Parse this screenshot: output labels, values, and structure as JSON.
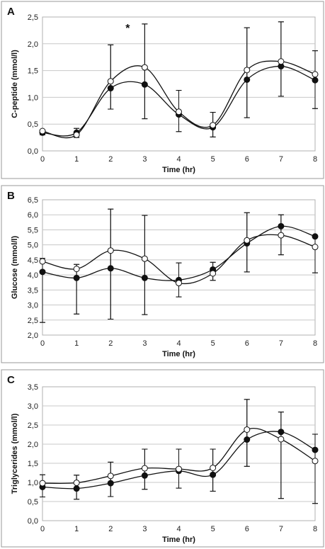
{
  "chart_data": [
    {
      "type": "line",
      "panel_label": "A",
      "xlabel": "Time (hr)",
      "ylabel": "C-peptide (mmol/l)",
      "x": [
        0,
        1,
        2,
        3,
        4,
        5,
        6,
        7,
        8
      ],
      "x_ticks": [
        "0",
        "1",
        "2",
        "3",
        "4",
        "5",
        "6",
        "7",
        "8"
      ],
      "xlim": [
        0,
        8
      ],
      "ylim": [
        0,
        2.5
      ],
      "y_ticks": [
        "0,0",
        "0,5",
        "1,0",
        "1,5",
        "2,0",
        "2,5"
      ],
      "grid": true,
      "smooth": true,
      "annotation": {
        "text": "*",
        "x": 2.5,
        "y": 2.3
      },
      "series": [
        {
          "marker": "filled",
          "values": [
            0.34,
            0.34,
            1.17,
            1.24,
            0.68,
            0.44,
            1.33,
            1.58,
            1.32
          ],
          "err_low": [
            0.3,
            0.25,
            0.78,
            0.6,
            0.36,
            0.26,
            0.62,
            1.02,
            0.79
          ],
          "err_high": [
            0.38,
            0.42,
            1.98,
            2.37,
            1.13,
            0.72,
            2.3,
            2.41,
            1.87
          ]
        },
        {
          "marker": "open",
          "values": [
            0.37,
            0.3,
            1.3,
            1.56,
            0.73,
            0.48,
            1.51,
            1.67,
            1.43
          ],
          "err_low": [
            0.3,
            0.25,
            0.78,
            0.6,
            0.36,
            0.26,
            0.62,
            1.02,
            0.79
          ],
          "err_high": [
            0.38,
            0.42,
            1.98,
            2.37,
            1.13,
            0.72,
            2.3,
            2.41,
            1.87
          ]
        }
      ]
    },
    {
      "type": "line",
      "panel_label": "B",
      "xlabel": "Time (hr)",
      "ylabel": "Glucose (mmol/l)",
      "x": [
        0,
        1,
        2,
        3,
        4,
        5,
        6,
        7,
        8
      ],
      "x_ticks": [
        "0",
        "1",
        "2",
        "3",
        "4",
        "5",
        "6",
        "7",
        "8"
      ],
      "xlim": [
        0,
        8
      ],
      "ylim": [
        2.0,
        6.5
      ],
      "y_ticks": [
        "2,0",
        "2,5",
        "3,0",
        "3,5",
        "4,0",
        "4,5",
        "5,0",
        "5,5",
        "6,0",
        "6,5"
      ],
      "grid": true,
      "smooth": true,
      "series": [
        {
          "marker": "filled",
          "values": [
            4.1,
            3.9,
            4.22,
            3.9,
            3.83,
            4.18,
            5.05,
            5.62,
            5.28
          ],
          "err_low": [
            2.42,
            2.7,
            2.53,
            2.68,
            3.27,
            3.82,
            4.1,
            4.67,
            4.07
          ],
          "err_high": [
            4.55,
            4.35,
            6.19,
            5.98,
            4.4,
            4.42,
            6.07,
            6.0,
            5.3
          ]
        },
        {
          "marker": "open",
          "values": [
            4.45,
            4.2,
            4.81,
            4.54,
            3.73,
            4.05,
            5.15,
            5.32,
            4.93
          ],
          "err_low": [
            2.42,
            2.7,
            2.53,
            2.68,
            3.27,
            3.82,
            4.1,
            4.67,
            4.07
          ],
          "err_high": [
            4.55,
            4.35,
            6.19,
            5.98,
            4.4,
            4.42,
            6.07,
            6.0,
            5.3
          ]
        }
      ]
    },
    {
      "type": "line",
      "panel_label": "C",
      "xlabel": "Time (hr)",
      "ylabel": "Triglycerides (mmol/l)",
      "x": [
        0,
        1,
        2,
        3,
        4,
        5,
        6,
        7,
        8
      ],
      "x_ticks": [
        "0",
        "1",
        "2",
        "3",
        "4",
        "5",
        "6",
        "7",
        "8"
      ],
      "xlim": [
        0,
        8
      ],
      "ylim": [
        0,
        3.5
      ],
      "y_ticks": [
        "0,0",
        "0,5",
        "1,0",
        "1,5",
        "2,0",
        "2,5",
        "3,0",
        "3,5"
      ],
      "grid": true,
      "smooth": true,
      "series": [
        {
          "marker": "filled",
          "values": [
            0.88,
            0.84,
            0.98,
            1.18,
            1.3,
            1.2,
            2.12,
            2.32,
            1.85
          ],
          "err_low": [
            0.62,
            0.56,
            0.63,
            0.82,
            0.85,
            0.77,
            1.42,
            0.58,
            0.45
          ],
          "err_high": [
            1.2,
            1.19,
            1.53,
            1.87,
            1.87,
            1.87,
            3.17,
            2.84,
            2.26
          ]
        },
        {
          "marker": "open",
          "values": [
            0.98,
            0.99,
            1.17,
            1.37,
            1.35,
            1.38,
            2.38,
            2.13,
            1.56
          ],
          "err_low": [
            0.62,
            0.56,
            0.63,
            0.82,
            0.85,
            0.77,
            1.42,
            0.58,
            0.45
          ],
          "err_high": [
            1.2,
            1.19,
            1.53,
            1.87,
            1.87,
            1.87,
            3.17,
            2.84,
            2.26
          ]
        }
      ]
    }
  ]
}
